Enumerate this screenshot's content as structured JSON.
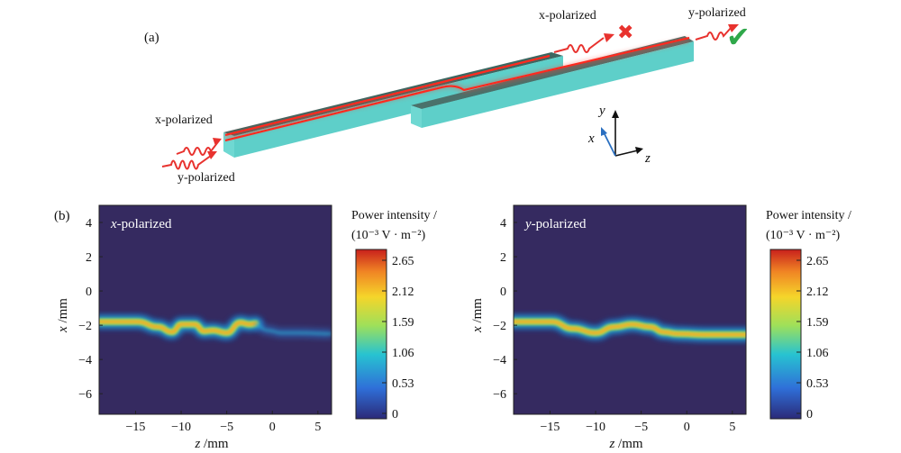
{
  "panel_a": {
    "label": "(a)",
    "input_x_label": "x-polarized",
    "input_y_label": "y-polarized",
    "output_x_label": "x-polarized",
    "output_y_label": "y-polarized",
    "output_x_mark": "✖",
    "output_y_mark": "✔",
    "axes": {
      "y": "y",
      "x": "x",
      "z": "z"
    },
    "colors": {
      "waveguide_side": "#5ecfc9",
      "waveguide_top": "#3e6660",
      "beam": "#ff3b2f",
      "cross": "#e8322e",
      "check": "#2fa84a"
    }
  },
  "panel_b": {
    "label": "(b)"
  },
  "chart_data": [
    {
      "type": "heatmap",
      "title": "x-polarized",
      "xlabel": "z /mm",
      "ylabel": "x /mm",
      "xlim": [
        -19,
        6.5
      ],
      "ylim": [
        -7.2,
        5
      ],
      "xticks": [
        -15,
        -10,
        -5,
        0,
        5
      ],
      "yticks": [
        -6,
        -4,
        -2,
        0,
        2,
        4
      ],
      "path": {
        "z": [
          -19,
          -14.8,
          -12.5,
          -11,
          -10,
          -8.5,
          -7.5,
          -6.5,
          -5,
          -3.5,
          -2.5,
          -1.8
        ],
        "x": [
          -1.8,
          -1.8,
          -2.1,
          -2.4,
          -1.95,
          -1.95,
          -2.35,
          -2.3,
          -2.45,
          -1.85,
          -1.95,
          -1.9
        ]
      },
      "fade_path": {
        "z": [
          -1.8,
          -0.5,
          1,
          3,
          6.5
        ],
        "x": [
          -2.0,
          -2.3,
          -2.45,
          -2.45,
          -2.5
        ]
      },
      "colorbar": {
        "title_line1": "Power intensity /",
        "title_line2": "(10⁻³ V · m⁻²)",
        "ticks": [
          "2.65",
          "2.12",
          "1.59",
          "1.06",
          "0.53",
          "0"
        ],
        "max": 2.65,
        "min": 0
      }
    },
    {
      "type": "heatmap",
      "title": "y-polarized",
      "xlabel": "z /mm",
      "ylabel": "x /mm",
      "xlim": [
        -19,
        6.5
      ],
      "ylim": [
        -7.2,
        5
      ],
      "xticks": [
        -15,
        -10,
        -5,
        0,
        5
      ],
      "yticks": [
        -6,
        -4,
        -2,
        0,
        2,
        4
      ],
      "path": {
        "z": [
          -19,
          -14.8,
          -12.5,
          -10,
          -8,
          -6,
          -4,
          -2.5,
          -1,
          2,
          6.5
        ],
        "x": [
          -1.8,
          -1.8,
          -2.2,
          -2.45,
          -2.1,
          -1.95,
          -2.1,
          -2.4,
          -2.5,
          -2.55,
          -2.55
        ]
      },
      "fade_path": {
        "z": [],
        "x": []
      },
      "colorbar": {
        "title_line1": "Power intensity /",
        "title_line2": "(10⁻³ V · m⁻²)",
        "ticks": [
          "2.65",
          "2.12",
          "1.59",
          "1.06",
          "0.53",
          "0"
        ],
        "max": 2.65,
        "min": 0
      }
    }
  ]
}
